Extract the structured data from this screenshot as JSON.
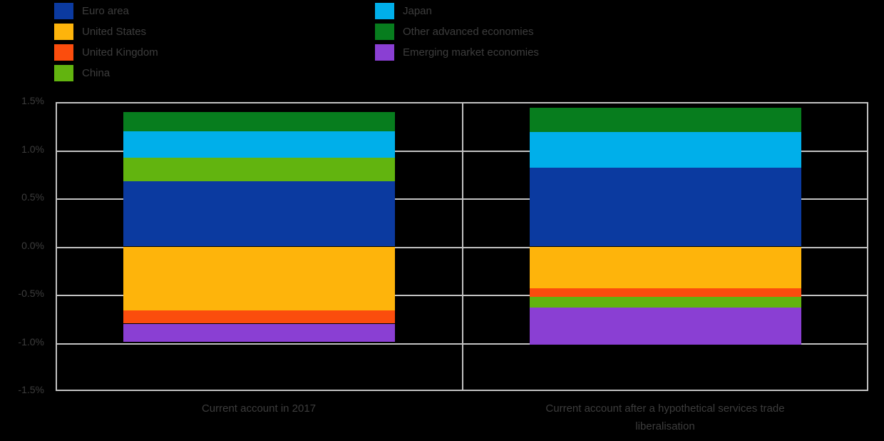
{
  "background_color": "#000000",
  "text_color": "#3d3d3d",
  "grid_color": "#c2c2c2",
  "colors": {
    "euro_area": "#0B3AA0",
    "united_states": "#FEB40B",
    "united_kingdom": "#FB4D0D",
    "china": "#62B40F",
    "japan": "#00AFEA",
    "other_advanced": "#077D1E",
    "emerging": "#8A3FD3"
  },
  "legend": {
    "columns": [
      {
        "items": [
          {
            "label": "Euro area",
            "color_key": "euro_area"
          },
          {
            "label": "United States",
            "color_key": "united_states"
          },
          {
            "label": "United Kingdom",
            "color_key": "united_kingdom"
          },
          {
            "label": "China",
            "color_key": "china"
          }
        ]
      },
      {
        "items": [
          {
            "label": "Japan",
            "color_key": "japan"
          },
          {
            "label": "Other advanced economies",
            "color_key": "other_advanced"
          },
          {
            "label": "Emerging market economies",
            "color_key": "emerging"
          }
        ]
      }
    ]
  },
  "axis": {
    "y_tick_labels": [
      "1.5%",
      "1.0%",
      "0.5%",
      "0.0%",
      "-0.5%",
      "-1.0%",
      "-1.5%"
    ],
    "y_max": 1.5,
    "y_min": -1.5,
    "y_step": 0.5
  },
  "chart_data": {
    "type": "bar",
    "stacked": true,
    "title": "",
    "xlabel": "",
    "ylabel": "",
    "unit": "percent",
    "ylim": [
      -1.5,
      1.5
    ],
    "grid": true,
    "legend_position": "top-left",
    "categories": [
      "Current account in 2017",
      "Current account after a hypothetical services trade liberalisation"
    ],
    "series": [
      {
        "name": "Euro area",
        "values": [
          0.68,
          0.82
        ]
      },
      {
        "name": "United States",
        "values": [
          -0.66,
          -0.43
        ]
      },
      {
        "name": "United Kingdom",
        "values": [
          -0.14,
          -0.09
        ]
      },
      {
        "name": "China",
        "values": [
          0.24,
          -0.11
        ]
      },
      {
        "name": "Japan",
        "values": [
          0.28,
          0.37
        ]
      },
      {
        "name": "Other advanced economies",
        "values": [
          0.2,
          0.25
        ]
      },
      {
        "name": "Emerging market economies",
        "values": [
          -0.19,
          -0.39
        ]
      }
    ]
  },
  "bars": [
    {
      "x_label_lines": [
        "Current account in 2017"
      ],
      "segments": [
        {
          "key": "other_advanced",
          "name": "Other advanced economies",
          "value": 0.2
        },
        {
          "key": "japan",
          "name": "Japan",
          "value": 0.28
        },
        {
          "key": "china",
          "name": "China",
          "value": 0.24
        },
        {
          "key": "euro_area",
          "name": "Euro area",
          "value": 0.68
        },
        {
          "key": "united_states",
          "name": "United States",
          "value": -0.66
        },
        {
          "key": "united_kingdom",
          "name": "United Kingdom",
          "value": -0.14
        },
        {
          "key": "emerging",
          "name": "Emerging market economies",
          "value": -0.19
        }
      ]
    },
    {
      "x_label_lines": [
        "Current account after a hypothetical services trade",
        "liberalisation"
      ],
      "segments": [
        {
          "key": "other_advanced",
          "name": "Other advanced economies",
          "value": 0.25
        },
        {
          "key": "japan",
          "name": "Japan",
          "value": 0.37
        },
        {
          "key": "euro_area",
          "name": "Euro area",
          "value": 0.82
        },
        {
          "key": "united_states",
          "name": "United States",
          "value": -0.43
        },
        {
          "key": "united_kingdom",
          "name": "United Kingdom",
          "value": -0.09
        },
        {
          "key": "china",
          "name": "China",
          "value": -0.11
        },
        {
          "key": "emerging",
          "name": "Emerging market economies",
          "value": -0.39
        }
      ]
    }
  ]
}
